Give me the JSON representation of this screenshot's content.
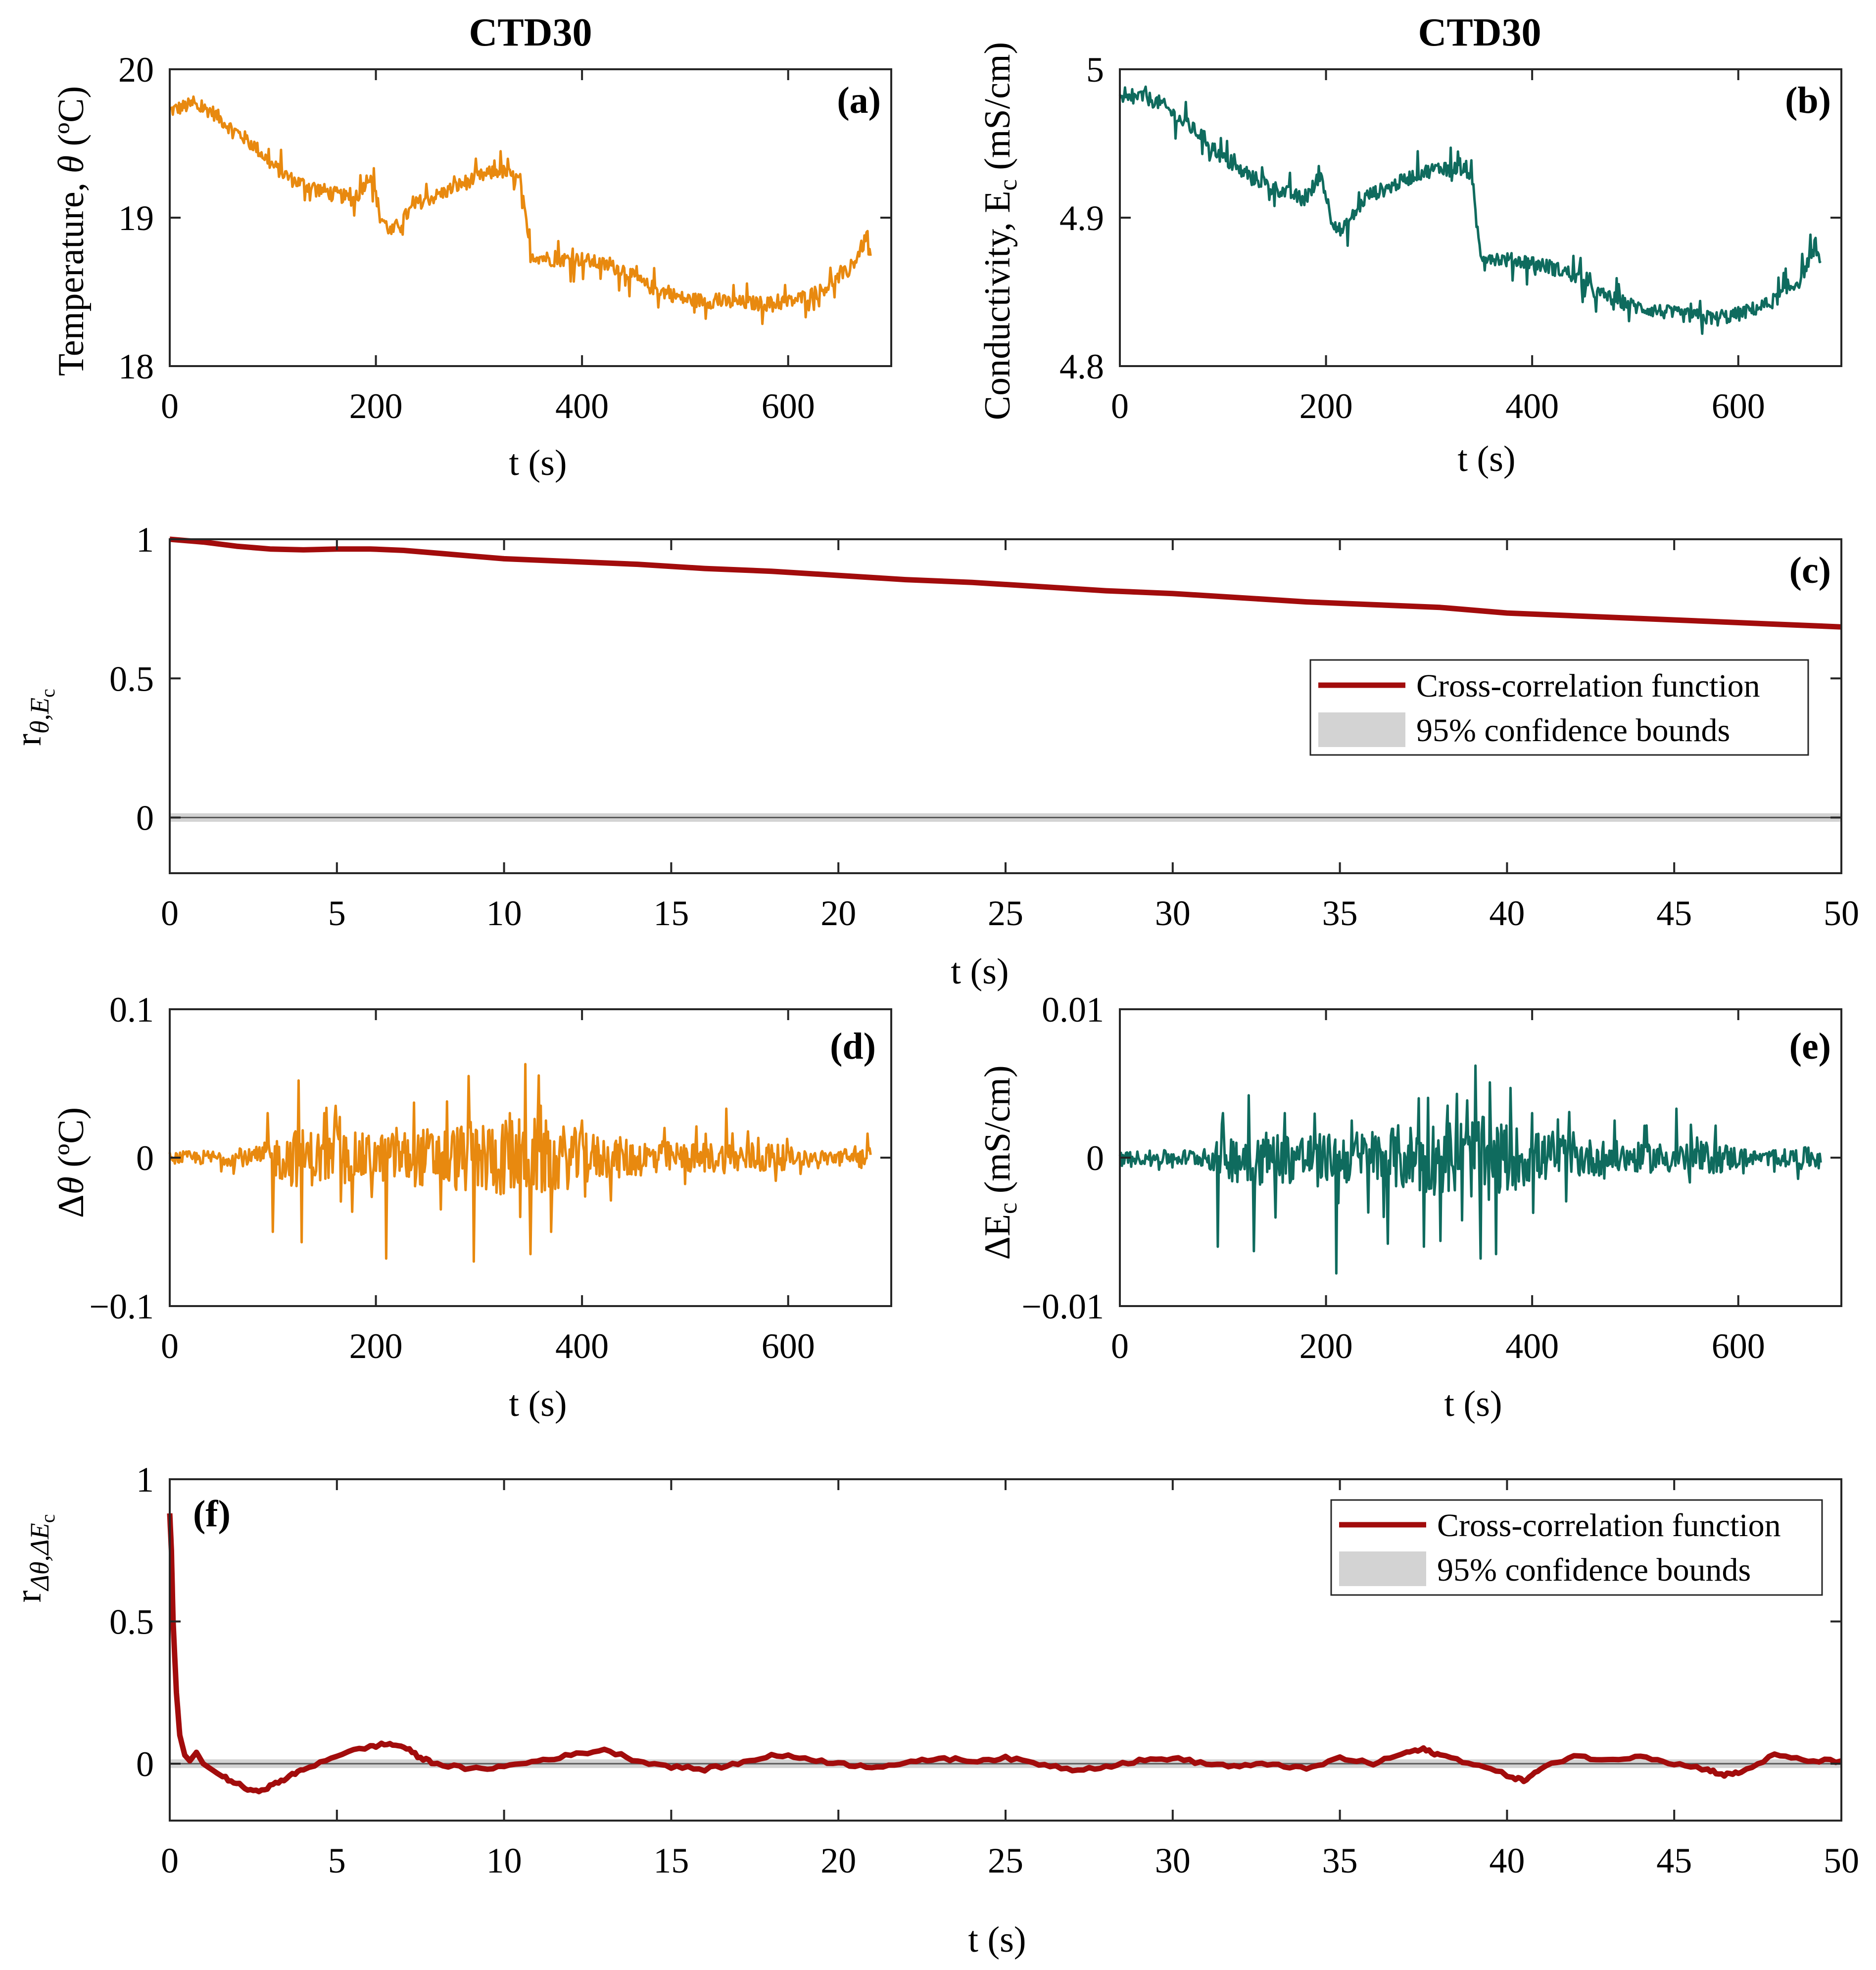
{
  "colors": {
    "temperature": "#E8890F",
    "conductivity": "#0F6B5E",
    "correlation": "#A20C0C",
    "confidence": "#D3D3D3",
    "axis": "#262626",
    "zero_line": "#5a5a5a"
  },
  "chart_data": [
    {
      "id": "a",
      "panel_tag": "(a)",
      "type": "line",
      "title": "CTD30",
      "xlabel": "t (s)",
      "ylabel_parts": [
        "Temperature, ",
        "θ",
        " (ºC)"
      ],
      "xlim": [
        0,
        700
      ],
      "ylim": [
        18,
        20
      ],
      "xticks": [
        0,
        200,
        400,
        600
      ],
      "yticks": [
        18,
        19,
        20
      ],
      "xtick_labels": [
        "0",
        "200",
        "400",
        "600"
      ],
      "ytick_labels": [
        "18",
        "19",
        "20"
      ],
      "series": [
        {
          "name": "Temperature",
          "color_key": "temperature",
          "trend_x": [
            0,
            20,
            40,
            60,
            80,
            100,
            120,
            150,
            180,
            195,
            205,
            215,
            240,
            260,
            290,
            320,
            340,
            350,
            370,
            400,
            440,
            460,
            500,
            540,
            580,
            600,
            630,
            660,
            675,
            680
          ],
          "trend_y": [
            19.72,
            19.76,
            19.72,
            19.6,
            19.5,
            19.35,
            19.25,
            19.18,
            19.12,
            19.3,
            19.0,
            18.9,
            19.1,
            19.15,
            19.25,
            19.32,
            19.25,
            18.75,
            18.72,
            18.72,
            18.65,
            18.55,
            18.45,
            18.43,
            18.42,
            18.43,
            18.5,
            18.65,
            18.85,
            18.75
          ],
          "noise": 0.07,
          "n": 680
        }
      ]
    },
    {
      "id": "b",
      "panel_tag": "(b)",
      "type": "line",
      "title": "CTD30",
      "xlabel": "t (s)",
      "ylabel_parts": [
        "Conductivity, E",
        "c",
        " (mS/cm)"
      ],
      "xlim": [
        0,
        700
      ],
      "ylim": [
        4.8,
        5.0
      ],
      "xticks": [
        0,
        200,
        400,
        600
      ],
      "yticks": [
        4.8,
        4.9,
        5.0
      ],
      "xtick_labels": [
        "0",
        "200",
        "400",
        "600"
      ],
      "ytick_labels": [
        "4.8",
        "4.9",
        "5"
      ],
      "series": [
        {
          "name": "Conductivity",
          "color_key": "conductivity",
          "trend_x": [
            0,
            20,
            40,
            60,
            80,
            100,
            120,
            150,
            180,
            195,
            205,
            215,
            240,
            260,
            290,
            320,
            340,
            350,
            370,
            400,
            440,
            460,
            500,
            540,
            580,
            600,
            630,
            660,
            675,
            680
          ],
          "trend_y": [
            4.978,
            4.982,
            4.977,
            4.965,
            4.955,
            4.94,
            4.93,
            4.92,
            4.912,
            4.93,
            4.9,
            4.89,
            4.915,
            4.92,
            4.93,
            4.935,
            4.93,
            4.875,
            4.872,
            4.87,
            4.862,
            4.85,
            4.84,
            4.835,
            4.832,
            4.835,
            4.842,
            4.858,
            4.882,
            4.868
          ],
          "noise": 0.007,
          "n": 680
        }
      ]
    },
    {
      "id": "c",
      "panel_tag": "(c)",
      "type": "line",
      "xlabel": "t (s)",
      "ylabel_main": "r",
      "ylabel_sub": "θ,E",
      "ylabel_subsub": "c",
      "xlim": [
        0,
        50
      ],
      "ylim": [
        -0.2,
        1.0
      ],
      "xticks": [
        0,
        5,
        10,
        15,
        20,
        25,
        30,
        35,
        40,
        45,
        50
      ],
      "yticks": [
        0,
        0.5,
        1
      ],
      "xtick_labels": [
        "0",
        "5",
        "10",
        "15",
        "20",
        "25",
        "30",
        "35",
        "40",
        "45",
        "50"
      ],
      "ytick_labels": [
        "0",
        "0.5",
        "1"
      ],
      "confidence_bounds": [
        -0.01,
        0.01
      ],
      "legend": {
        "position": "right",
        "entries": [
          "Cross-correlation function",
          "95% confidence bounds"
        ]
      },
      "series": [
        {
          "name": "Cross-correlation function",
          "color_key": "correlation",
          "x": [
            0,
            1,
            2,
            3,
            4,
            5,
            6,
            7,
            8,
            9,
            10,
            12,
            14,
            16,
            18,
            20,
            22,
            24,
            26,
            28,
            30,
            32,
            34,
            36,
            38,
            40,
            42,
            44,
            46,
            48,
            50
          ],
          "y": [
            1.0,
            0.99,
            0.975,
            0.965,
            0.962,
            0.965,
            0.965,
            0.96,
            0.95,
            0.94,
            0.93,
            0.92,
            0.91,
            0.895,
            0.885,
            0.87,
            0.855,
            0.845,
            0.83,
            0.815,
            0.805,
            0.79,
            0.775,
            0.765,
            0.755,
            0.735,
            0.725,
            0.715,
            0.705,
            0.695,
            0.685
          ]
        }
      ]
    },
    {
      "id": "d",
      "panel_tag": "(d)",
      "type": "line",
      "xlabel": "t (s)",
      "ylabel_parts": [
        "Δ",
        "θ",
        " (ºC)"
      ],
      "xlim": [
        0,
        700
      ],
      "ylim": [
        -0.1,
        0.1
      ],
      "xticks": [
        0,
        200,
        400,
        600
      ],
      "yticks": [
        -0.1,
        0,
        0.1
      ],
      "xtick_labels": [
        "0",
        "200",
        "400",
        "600"
      ],
      "ytick_labels": [
        "−0.1",
        "0",
        "0.1"
      ],
      "series": [
        {
          "name": "Temperature difference",
          "color_key": "temperature",
          "envelope_x": [
            0,
            80,
            120,
            200,
            300,
            350,
            420,
            500,
            580,
            620,
            680
          ],
          "envelope_y": [
            0.004,
            0.006,
            0.02,
            0.016,
            0.025,
            0.028,
            0.015,
            0.01,
            0.011,
            0.004,
            0.008
          ],
          "spikes": [
            [
              95,
              0.03
            ],
            [
              100,
              -0.05
            ],
            [
              125,
              0.052
            ],
            [
              128,
              -0.057
            ],
            [
              150,
              0.03
            ],
            [
              210,
              -0.068
            ],
            [
              220,
              0.02
            ],
            [
              290,
              0.055
            ],
            [
              295,
              -0.07
            ],
            [
              345,
              0.063
            ],
            [
              350,
              -0.065
            ],
            [
              330,
              0.03
            ],
            [
              340,
              -0.04
            ],
            [
              360,
              0.035
            ],
            [
              370,
              -0.05
            ],
            [
              400,
              0.025
            ],
            [
              480,
              0.02
            ],
            [
              540,
              0.033
            ]
          ],
          "n": 680
        }
      ]
    },
    {
      "id": "e",
      "panel_tag": "(e)",
      "type": "line",
      "xlabel": "t (s)",
      "ylabel_parts": [
        "ΔE",
        "c",
        " (mS/cm)"
      ],
      "xlim": [
        0,
        700
      ],
      "ylim": [
        -0.01,
        0.01
      ],
      "xticks": [
        0,
        200,
        400,
        600
      ],
      "yticks": [
        -0.01,
        0,
        0.01
      ],
      "xtick_labels": [
        "0",
        "200",
        "400",
        "600"
      ],
      "ytick_labels": [
        "−0.01",
        "0",
        "0.01"
      ],
      "series": [
        {
          "name": "Conductivity difference",
          "color_key": "conductivity",
          "envelope_x": [
            0,
            80,
            120,
            200,
            300,
            350,
            420,
            500,
            580,
            620,
            680
          ],
          "envelope_y": [
            0.0004,
            0.0006,
            0.002,
            0.0016,
            0.0025,
            0.0028,
            0.0015,
            0.001,
            0.0011,
            0.0004,
            0.0008
          ],
          "spikes": [
            [
              95,
              -0.006
            ],
            [
              100,
              0.003
            ],
            [
              125,
              0.0042
            ],
            [
              130,
              -0.0063
            ],
            [
              160,
              0.003
            ],
            [
              210,
              -0.0078
            ],
            [
              225,
              0.0025
            ],
            [
              260,
              -0.0058
            ],
            [
              290,
              0.004
            ],
            [
              295,
              -0.006
            ],
            [
              345,
              0.0062
            ],
            [
              350,
              -0.0068
            ],
            [
              365,
              -0.0065
            ],
            [
              400,
              0.003
            ],
            [
              480,
              0.0025
            ],
            [
              540,
              0.0033
            ]
          ],
          "n": 680
        }
      ]
    },
    {
      "id": "f",
      "panel_tag": "(f)",
      "type": "line",
      "xlabel": "t (s)",
      "ylabel_main": "r",
      "ylabel_sub": "Δθ,ΔE",
      "ylabel_subsub": "c",
      "xlim": [
        0,
        50
      ],
      "ylim": [
        -0.2,
        1.0
      ],
      "xticks": [
        0,
        5,
        10,
        15,
        20,
        25,
        30,
        35,
        40,
        45,
        50
      ],
      "yticks": [
        0,
        0.5,
        1
      ],
      "xtick_labels": [
        "0",
        "5",
        "10",
        "15",
        "20",
        "25",
        "30",
        "35",
        "40",
        "45",
        "50"
      ],
      "ytick_labels": [
        "0",
        "0.5",
        "1"
      ],
      "confidence_bounds": [
        -0.01,
        0.01
      ],
      "legend": {
        "position": "top-right",
        "entries": [
          "Cross-correlation function",
          "95% confidence bounds"
        ]
      },
      "series": [
        {
          "name": "Cross-correlation function",
          "color_key": "correlation",
          "x": [
            0,
            0.05,
            0.1,
            0.2,
            0.3,
            0.45,
            0.6,
            0.8,
            1.0,
            1.5,
            2.0,
            2.5,
            3.0,
            3.5,
            4.0,
            5.0,
            6.0,
            6.5,
            7.0,
            7.5,
            8.0,
            9.0,
            10.0,
            11.0,
            12.0,
            13.0,
            14.0,
            15.0,
            16.0,
            17.0,
            18.0,
            19.0,
            20.0,
            21.0,
            22.0,
            23.0,
            24.0,
            25.0,
            26.0,
            27.0,
            28.0,
            29.0,
            30.0,
            31.0,
            32.0,
            33.0,
            34.0,
            35.0,
            36.0,
            37.0,
            37.5,
            38.0,
            39.0,
            40.0,
            40.5,
            41.0,
            42.0,
            43.0,
            44.0,
            45.0,
            46.0,
            46.5,
            47.0,
            48.0,
            49.0,
            50.0
          ],
          "y": [
            0.88,
            0.75,
            0.5,
            0.25,
            0.1,
            0.03,
            0.01,
            0.04,
            0.0,
            -0.04,
            -0.07,
            -0.1,
            -0.08,
            -0.05,
            -0.02,
            0.03,
            0.06,
            0.07,
            0.06,
            0.02,
            0.0,
            -0.02,
            -0.01,
            0.01,
            0.03,
            0.05,
            0.01,
            -0.01,
            -0.02,
            0.0,
            0.03,
            0.02,
            0.0,
            -0.01,
            0.0,
            0.02,
            0.01,
            0.02,
            0.0,
            -0.02,
            -0.01,
            0.01,
            0.02,
            0.0,
            -0.01,
            0.0,
            -0.02,
            0.02,
            0.0,
            0.04,
            0.05,
            0.03,
            0.0,
            -0.04,
            -0.06,
            -0.02,
            0.03,
            0.01,
            0.03,
            0.0,
            -0.02,
            -0.04,
            -0.03,
            0.03,
            0.01,
            0.01
          ]
        }
      ]
    }
  ]
}
